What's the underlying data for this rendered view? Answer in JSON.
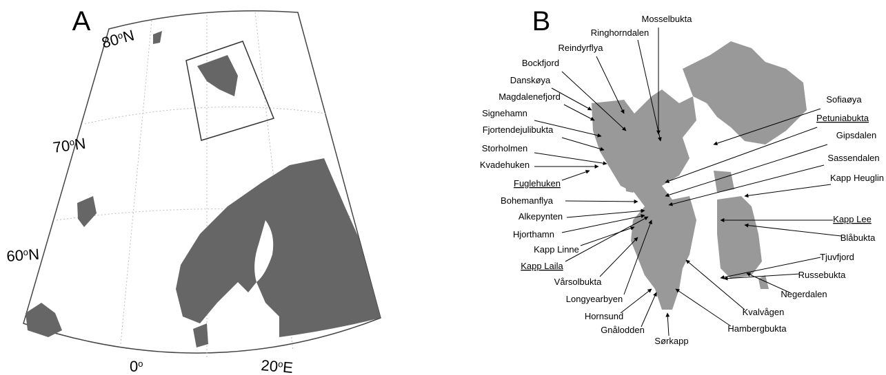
{
  "panels": [
    {
      "label": "A",
      "grid_labels": [
        [
          "80",
          "o",
          "N"
        ],
        [
          "70",
          "o",
          "N"
        ],
        [
          "60",
          "o",
          "N"
        ],
        [
          "0",
          "o",
          ""
        ],
        [
          "20",
          "o",
          "E"
        ]
      ]
    },
    {
      "label": "B",
      "places": [
        {
          "name": "Mosselbukta"
        },
        {
          "name": "Ringhorndalen"
        },
        {
          "name": "Reindyrflya"
        },
        {
          "name": "Bockfjord"
        },
        {
          "name": "Danskøya"
        },
        {
          "name": "Magdalenefjord"
        },
        {
          "name": "Signehamn"
        },
        {
          "name": "Fjortendejulibukta"
        },
        {
          "name": "Storholmen"
        },
        {
          "name": "Kvadehuken"
        },
        {
          "name": "Fuglehuken",
          "underlined": true
        },
        {
          "name": "Bohemanflya"
        },
        {
          "name": "Alkepynten"
        },
        {
          "name": "Hjorthamn"
        },
        {
          "name": "Kapp Linne"
        },
        {
          "name": "Kapp Laila",
          "underlined": true
        },
        {
          "name": "Vårsolbukta"
        },
        {
          "name": "Longyearbyen"
        },
        {
          "name": "Hornsund"
        },
        {
          "name": "Gnålodden"
        },
        {
          "name": "Sørkapp"
        },
        {
          "name": "Hambergbukta"
        },
        {
          "name": "Kvalvågen"
        },
        {
          "name": "Negerdalen"
        },
        {
          "name": "Russebukta"
        },
        {
          "name": "Tjuvfjord"
        },
        {
          "name": "Blåbukta"
        },
        {
          "name": "Kapp Lee",
          "underlined": true
        },
        {
          "name": "Kapp Heuglin"
        },
        {
          "name": "Sassendalen"
        },
        {
          "name": "Gipsdalen"
        },
        {
          "name": "Petuniabukta",
          "underlined": true
        },
        {
          "name": "Sofiaøya"
        }
      ]
    }
  ]
}
